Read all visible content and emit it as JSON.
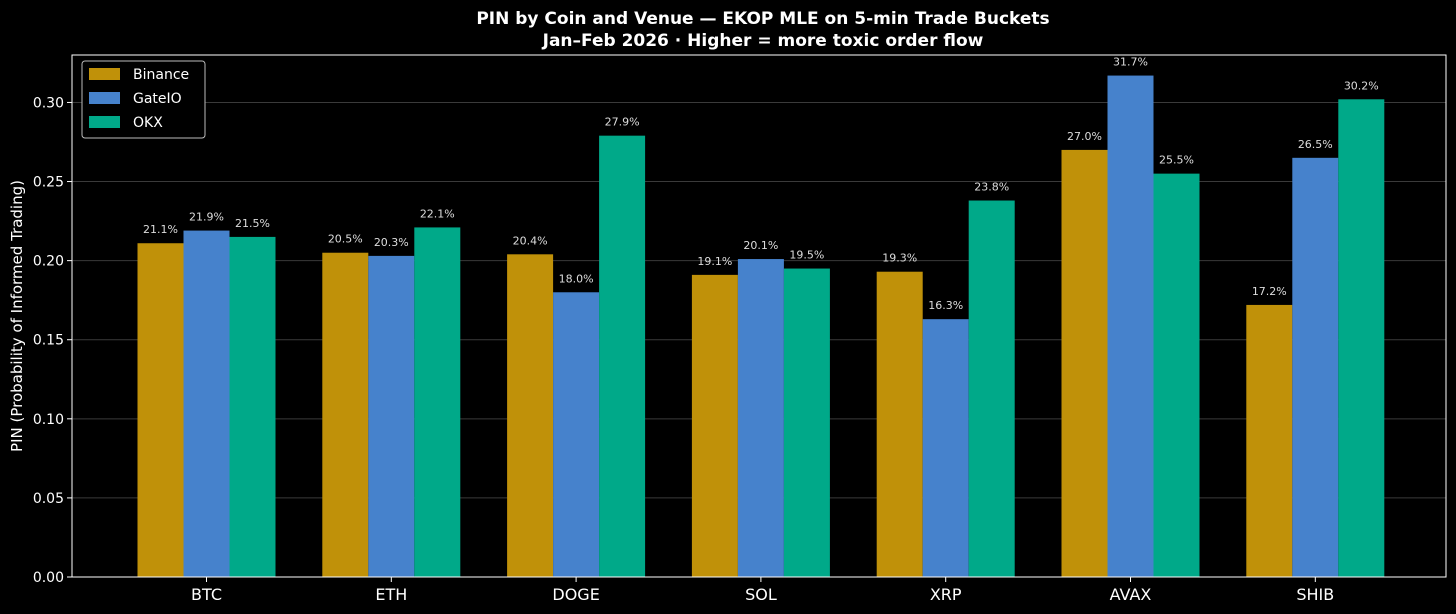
{
  "chart_data": {
    "type": "bar",
    "title": "PIN by Coin and Venue — EKOP MLE on 5-min Trade Buckets",
    "subtitle": "Jan–Feb 2026 · Higher = more toxic order flow",
    "xlabel": "",
    "ylabel": "PIN (Probability of Informed Trading)",
    "ylim": [
      0,
      0.33
    ],
    "yticks": [
      0.0,
      0.05,
      0.1,
      0.15,
      0.2,
      0.25,
      0.3
    ],
    "ytick_labels": [
      "0.00",
      "0.05",
      "0.10",
      "0.15",
      "0.20",
      "0.25",
      "0.30"
    ],
    "grid": true,
    "legend_position": "top-left",
    "categories": [
      "BTC",
      "ETH",
      "DOGE",
      "SOL",
      "XRP",
      "AVAX",
      "SHIB"
    ],
    "series": [
      {
        "name": "Binance",
        "color": "#c09109",
        "values": [
          0.211,
          0.205,
          0.204,
          0.191,
          0.193,
          0.27,
          0.172
        ],
        "labels": [
          "21.1%",
          "20.5%",
          "20.4%",
          "19.1%",
          "19.3%",
          "27.0%",
          "17.2%"
        ]
      },
      {
        "name": "GateIO",
        "color": "#4682cc",
        "values": [
          0.219,
          0.203,
          0.18,
          0.201,
          0.163,
          0.317,
          0.265
        ],
        "labels": [
          "21.9%",
          "20.3%",
          "18.0%",
          "20.1%",
          "16.3%",
          "31.7%",
          "26.5%"
        ]
      },
      {
        "name": "OKX",
        "color": "#00a989",
        "values": [
          0.215,
          0.221,
          0.279,
          0.195,
          0.238,
          0.255,
          0.302
        ],
        "labels": [
          "21.5%",
          "22.1%",
          "27.9%",
          "19.5%",
          "23.8%",
          "25.5%",
          "30.2%"
        ]
      }
    ]
  }
}
